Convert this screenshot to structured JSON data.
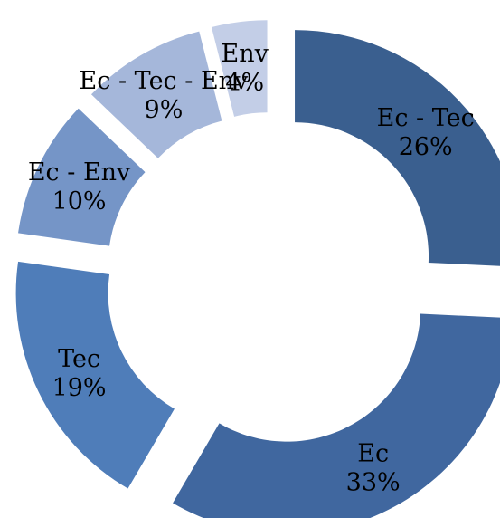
{
  "chart_data": {
    "type": "pie",
    "title": "",
    "donut": true,
    "exploded": true,
    "legend": "none",
    "slices": [
      {
        "label": "Ec - Tec",
        "value": 26,
        "value_label": "26%",
        "color": "#3a5f8f"
      },
      {
        "label": "Ec",
        "value": 33,
        "value_label": "33%",
        "color": "#40679f"
      },
      {
        "label": "Tec",
        "value": 19,
        "value_label": "19%",
        "color": "#4f7db9"
      },
      {
        "label": "Ec - Env",
        "value": 10,
        "value_label": "10%",
        "color": "#7595c7"
      },
      {
        "label": "Ec - Tec - Env",
        "value": 9,
        "value_label": "9%",
        "color": "#a5b7da"
      },
      {
        "label": "Env",
        "value": 4,
        "value_label": "4%",
        "color": "#c3cee7"
      }
    ]
  }
}
